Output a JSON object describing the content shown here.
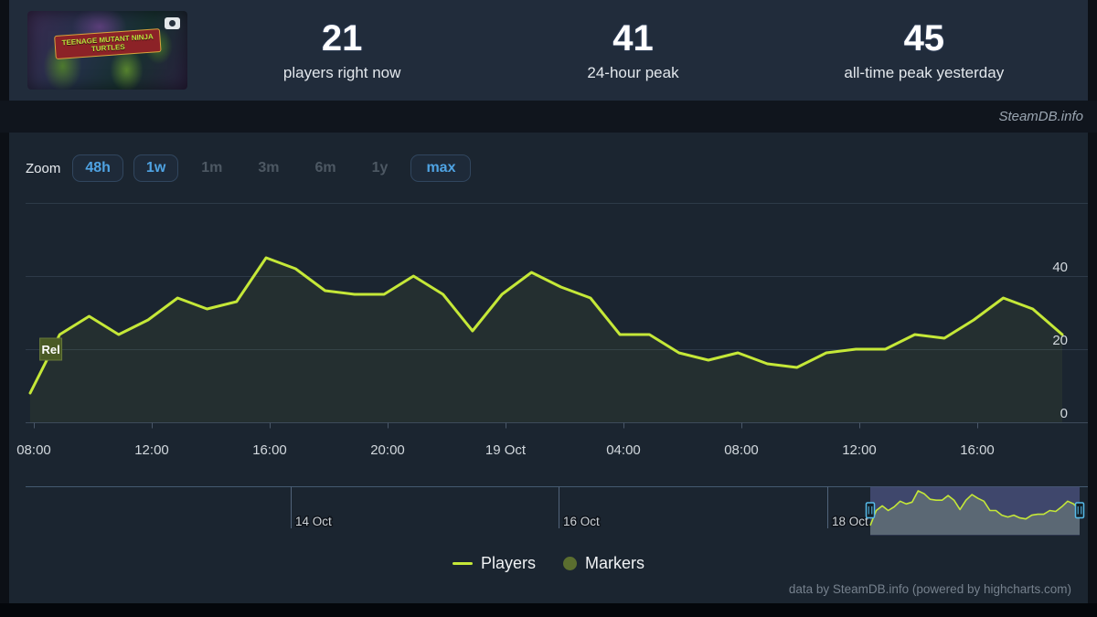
{
  "header": {
    "stats": [
      {
        "value": "21",
        "label": "players right now"
      },
      {
        "value": "41",
        "label": "24-hour peak"
      },
      {
        "value": "45",
        "label": "all-time peak yesterday"
      }
    ],
    "banner": {
      "logo_line1": "TEENAGE MUTANT NINJA",
      "logo_line2": "TURTLES"
    }
  },
  "brandbar": {
    "text": "SteamDB.info"
  },
  "toolbar": {
    "zoom_label": "Zoom",
    "buttons": [
      {
        "label": "48h",
        "enabled": true
      },
      {
        "label": "1w",
        "enabled": true
      },
      {
        "label": "1m",
        "enabled": false
      },
      {
        "label": "3m",
        "enabled": false
      },
      {
        "label": "6m",
        "enabled": false
      },
      {
        "label": "1y",
        "enabled": false
      },
      {
        "label": "max",
        "enabled": true
      }
    ]
  },
  "chart_data": {
    "type": "line",
    "title": "",
    "xlabel": "",
    "ylabel": "",
    "x_tick_labels": [
      "08:00",
      "12:00",
      "16:00",
      "20:00",
      "19 Oct",
      "04:00",
      "08:00",
      "12:00",
      "16:00"
    ],
    "y_ticks": [
      0,
      20,
      40
    ],
    "ylim": [
      0,
      46
    ],
    "grid": true,
    "legend_position": "bottom",
    "series": [
      {
        "name": "Players",
        "color": "#c5e838",
        "start": "18 Oct 08:00",
        "interval_hours": 1,
        "values": [
          8,
          24,
          29,
          24,
          28,
          34,
          31,
          33,
          45,
          42,
          36,
          35,
          35,
          40,
          35,
          25,
          35,
          41,
          37,
          34,
          24,
          24,
          19,
          17,
          19,
          16,
          15,
          19,
          20,
          20,
          24,
          23,
          28,
          34,
          31,
          24
        ]
      }
    ],
    "flags": [
      {
        "label": "Rel",
        "index": 0.7,
        "value": 20
      }
    ]
  },
  "navigator": {
    "date_labels": [
      "14 Oct",
      "16 Oct",
      "18 Oct"
    ]
  },
  "legend": {
    "items": [
      {
        "label": "Players",
        "swatch": "line",
        "color": "#c5e838"
      },
      {
        "label": "Markers",
        "swatch": "circle",
        "color": "#5b6e2f"
      }
    ]
  },
  "footer": {
    "credit": "data by SteamDB.info (powered by highcharts.com)"
  },
  "colors": {
    "accent_line": "#c5e838",
    "link_blue": "#4fa3e3",
    "flag_fill": "#4a5a26",
    "selection_fill": "#454e77",
    "handle_stroke": "#56bbea"
  }
}
